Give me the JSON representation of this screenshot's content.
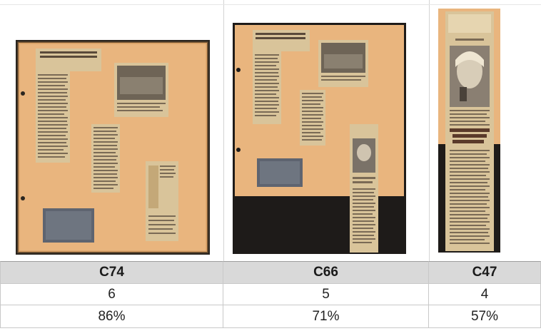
{
  "items": [
    {
      "code": "C74",
      "count": "6",
      "percent": "86%"
    },
    {
      "code": "C66",
      "count": "5",
      "percent": "71%"
    },
    {
      "code": "C47",
      "count": "4",
      "percent": "57%"
    }
  ],
  "colors": {
    "paper": "#e9b57e",
    "paper_dark": "#d69b5d",
    "border": "#2b2620",
    "black_bg": "#1e1b19",
    "header_bg": "#d9d9d9"
  },
  "icons": [
    "scrapbook-page-thumbnail",
    "newspaper-clipping",
    "photo-clipping"
  ]
}
